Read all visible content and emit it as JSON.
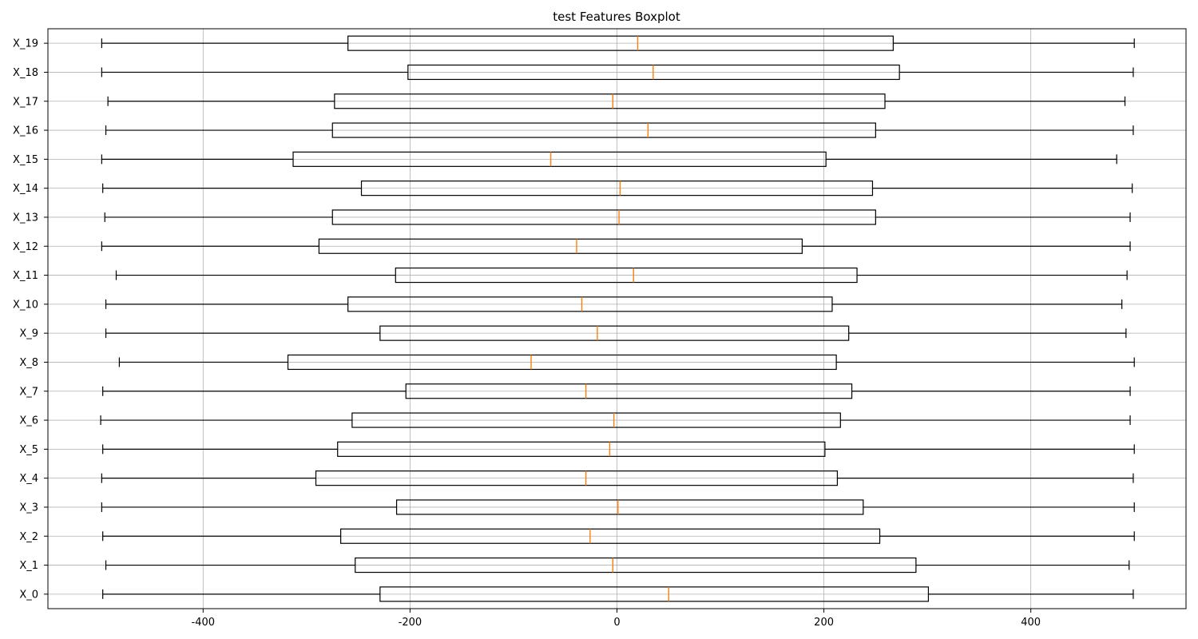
{
  "chart_data": {
    "type": "boxplot",
    "orientation": "horizontal",
    "title": "test Features Boxplot",
    "xlabel": "",
    "ylabel": "",
    "xlim": [
      -550,
      550
    ],
    "x_ticks": [
      -400,
      -200,
      0,
      200,
      400
    ],
    "x_tick_labels": [
      "-400",
      "-200",
      "0",
      "200",
      "400"
    ],
    "grid": true,
    "colors": {
      "box": "#000000",
      "median": "#ff7f0e",
      "grid": "#b0b0b0"
    },
    "categories": [
      "X_0",
      "X_1",
      "X_2",
      "X_3",
      "X_4",
      "X_5",
      "X_6",
      "X_7",
      "X_8",
      "X_9",
      "X_10",
      "X_11",
      "X_12",
      "X_13",
      "X_14",
      "X_15",
      "X_16",
      "X_17",
      "X_18",
      "X_19"
    ],
    "boxes": [
      {
        "label": "X_0",
        "whislo": -497,
        "q1": -229,
        "median": 50,
        "q3": 301,
        "whishi": 499
      },
      {
        "label": "X_1",
        "whislo": -494,
        "q1": -253,
        "median": -4,
        "q3": 289,
        "whishi": 495
      },
      {
        "label": "X_2",
        "whislo": -497,
        "q1": -267,
        "median": -26,
        "q3": 254,
        "whishi": 500
      },
      {
        "label": "X_3",
        "whislo": -498,
        "q1": -213,
        "median": 1,
        "q3": 238,
        "whishi": 500
      },
      {
        "label": "X_4",
        "whislo": -498,
        "q1": -291,
        "median": -30,
        "q3": 213,
        "whishi": 499
      },
      {
        "label": "X_5",
        "whislo": -497,
        "q1": -270,
        "median": -7,
        "q3": 201,
        "whishi": 500
      },
      {
        "label": "X_6",
        "whislo": -499,
        "q1": -256,
        "median": -3,
        "q3": 216,
        "whishi": 496
      },
      {
        "label": "X_7",
        "whislo": -497,
        "q1": -204,
        "median": -30,
        "q3": 227,
        "whishi": 496
      },
      {
        "label": "X_8",
        "whislo": -481,
        "q1": -318,
        "median": -83,
        "q3": 212,
        "whishi": 500
      },
      {
        "label": "X_9",
        "whislo": -494,
        "q1": -229,
        "median": -19,
        "q3": 224,
        "whishi": 492
      },
      {
        "label": "X_10",
        "whislo": -494,
        "q1": -260,
        "median": -34,
        "q3": 208,
        "whishi": 488
      },
      {
        "label": "X_11",
        "whislo": -484,
        "q1": -214,
        "median": 16,
        "q3": 232,
        "whishi": 493
      },
      {
        "label": "X_12",
        "whislo": -498,
        "q1": -288,
        "median": -39,
        "q3": 179,
        "whishi": 496
      },
      {
        "label": "X_13",
        "whislo": -495,
        "q1": -275,
        "median": 2,
        "q3": 250,
        "whishi": 496
      },
      {
        "label": "X_14",
        "whislo": -497,
        "q1": -247,
        "median": 3,
        "q3": 247,
        "whishi": 498
      },
      {
        "label": "X_15",
        "whislo": -498,
        "q1": -313,
        "median": -64,
        "q3": 202,
        "whishi": 483
      },
      {
        "label": "X_16",
        "whislo": -494,
        "q1": -275,
        "median": 30,
        "q3": 250,
        "whishi": 499
      },
      {
        "label": "X_17",
        "whislo": -492,
        "q1": -273,
        "median": -4,
        "q3": 259,
        "whishi": 491
      },
      {
        "label": "X_18",
        "whislo": -498,
        "q1": -202,
        "median": 35,
        "q3": 273,
        "whishi": 499
      },
      {
        "label": "X_19",
        "whislo": -498,
        "q1": -260,
        "median": 20,
        "q3": 267,
        "whishi": 500
      }
    ]
  }
}
